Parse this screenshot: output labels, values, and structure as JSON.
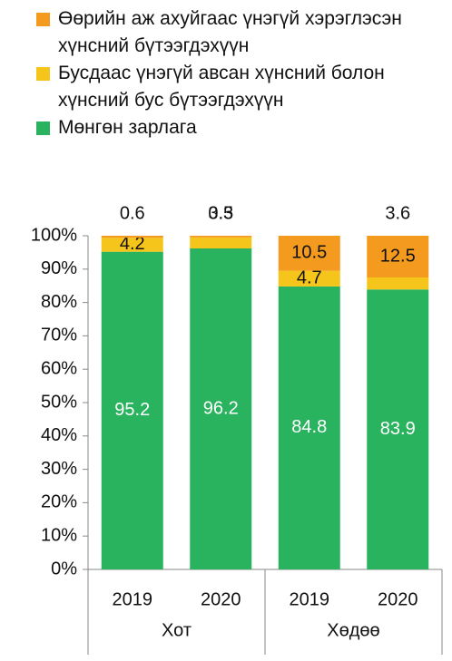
{
  "chart_data": {
    "type": "stacked_bar",
    "categories": [
      "2019",
      "2020",
      "2019",
      "2020"
    ],
    "groups": [
      {
        "label": "Хот",
        "span": 2
      },
      {
        "label": "Хөдөө",
        "span": 2
      }
    ],
    "series": [
      {
        "name": "Мөнгөн зарлага",
        "color": "#2ab35e",
        "values": [
          95.2,
          96.2,
          84.8,
          83.9
        ]
      },
      {
        "name": "Бусдаас үнэгүй авсан хүнсний болон хүнсний бус бүтээгдэхүүн",
        "color": "#f6c51b",
        "values": [
          4.2,
          3.3,
          4.7,
          3.6
        ]
      },
      {
        "name": "Өөрийн аж ахуйгаас үнэгүй хэрэглэсэн хүнсний бүтээгдэхүүн",
        "color": "#f39a1f",
        "values": [
          0.6,
          0.5,
          10.5,
          12.5
        ]
      }
    ],
    "ylim": [
      0,
      100
    ],
    "yticks": [
      {
        "value": 0,
        "label": "0%"
      },
      {
        "value": 10,
        "label": "10%"
      },
      {
        "value": 20,
        "label": "20%"
      },
      {
        "value": 30,
        "label": "30%"
      },
      {
        "value": 40,
        "label": "40%"
      },
      {
        "value": 50,
        "label": "50%"
      },
      {
        "value": 60,
        "label": "60%"
      },
      {
        "value": 70,
        "label": "70%"
      },
      {
        "value": 80,
        "label": "80%"
      },
      {
        "value": 90,
        "label": "90%"
      },
      {
        "value": 100,
        "label": "100%"
      }
    ],
    "legend": "top"
  }
}
